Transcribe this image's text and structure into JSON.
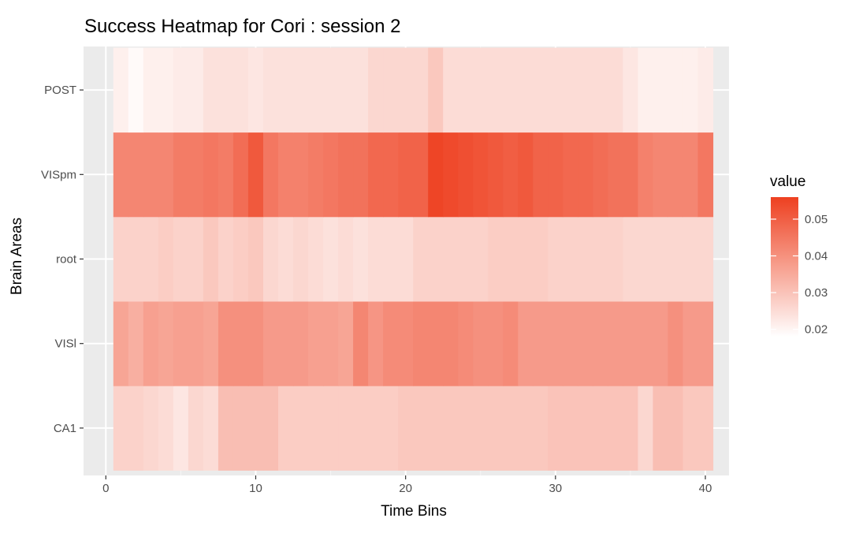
{
  "chart_data": {
    "type": "heatmap",
    "title": "Success Heatmap for Cori : session 2",
    "xlabel": "Time Bins",
    "ylabel": "Brain Areas",
    "x": [
      1,
      2,
      3,
      4,
      5,
      6,
      7,
      8,
      9,
      10,
      11,
      12,
      13,
      14,
      15,
      16,
      17,
      18,
      19,
      20,
      21,
      22,
      23,
      24,
      25,
      26,
      27,
      28,
      29,
      30,
      31,
      32,
      33,
      34,
      35,
      36,
      37,
      38,
      39,
      40
    ],
    "y_categories": [
      "CA1",
      "VISl",
      "root",
      "VISpm",
      "POST"
    ],
    "values": [
      [
        0.027,
        0.027,
        0.026,
        0.025,
        0.023,
        0.026,
        0.025,
        0.031,
        0.031,
        0.031,
        0.031,
        0.028,
        0.028,
        0.028,
        0.028,
        0.028,
        0.028,
        0.028,
        0.028,
        0.029,
        0.029,
        0.029,
        0.029,
        0.029,
        0.029,
        0.029,
        0.029,
        0.029,
        0.029,
        0.03,
        0.03,
        0.03,
        0.03,
        0.03,
        0.03,
        0.026,
        0.031,
        0.031,
        0.029,
        0.029
      ],
      [
        0.036,
        0.034,
        0.037,
        0.036,
        0.037,
        0.037,
        0.036,
        0.04,
        0.04,
        0.04,
        0.038,
        0.038,
        0.038,
        0.037,
        0.037,
        0.036,
        0.042,
        0.039,
        0.041,
        0.041,
        0.042,
        0.042,
        0.042,
        0.041,
        0.04,
        0.04,
        0.041,
        0.038,
        0.038,
        0.038,
        0.038,
        0.038,
        0.038,
        0.038,
        0.038,
        0.038,
        0.038,
        0.04,
        0.038,
        0.038
      ],
      [
        0.027,
        0.027,
        0.027,
        0.028,
        0.027,
        0.027,
        0.029,
        0.027,
        0.028,
        0.029,
        0.026,
        0.025,
        0.026,
        0.025,
        0.024,
        0.025,
        0.024,
        0.025,
        0.025,
        0.025,
        0.027,
        0.027,
        0.027,
        0.027,
        0.027,
        0.028,
        0.028,
        0.028,
        0.028,
        0.027,
        0.027,
        0.027,
        0.027,
        0.027,
        0.026,
        0.026,
        0.026,
        0.026,
        0.026,
        0.026
      ],
      [
        0.042,
        0.042,
        0.042,
        0.042,
        0.044,
        0.044,
        0.045,
        0.044,
        0.047,
        0.051,
        0.045,
        0.043,
        0.043,
        0.044,
        0.045,
        0.046,
        0.046,
        0.048,
        0.048,
        0.049,
        0.049,
        0.055,
        0.054,
        0.053,
        0.052,
        0.051,
        0.05,
        0.051,
        0.049,
        0.049,
        0.048,
        0.048,
        0.047,
        0.046,
        0.046,
        0.043,
        0.042,
        0.042,
        0.042,
        0.045
      ],
      [
        0.021,
        0.019,
        0.021,
        0.021,
        0.022,
        0.022,
        0.024,
        0.024,
        0.024,
        0.023,
        0.024,
        0.024,
        0.024,
        0.024,
        0.024,
        0.024,
        0.024,
        0.026,
        0.026,
        0.026,
        0.026,
        0.029,
        0.025,
        0.025,
        0.025,
        0.025,
        0.025,
        0.025,
        0.025,
        0.025,
        0.025,
        0.025,
        0.025,
        0.025,
        0.023,
        0.021,
        0.021,
        0.021,
        0.021,
        0.022
      ]
    ],
    "xlim": [
      0,
      41
    ],
    "x_ticks": [
      0,
      10,
      20,
      30,
      40
    ],
    "grid": true,
    "color_scale": {
      "low": "#ffffff",
      "high": "#ee4020",
      "min": 0.018,
      "max": 0.056
    },
    "legend": {
      "title": "value",
      "placement": "right",
      "ticks": [
        0.02,
        0.03,
        0.04,
        0.05
      ]
    },
    "panel_background": "#ebebeb"
  }
}
